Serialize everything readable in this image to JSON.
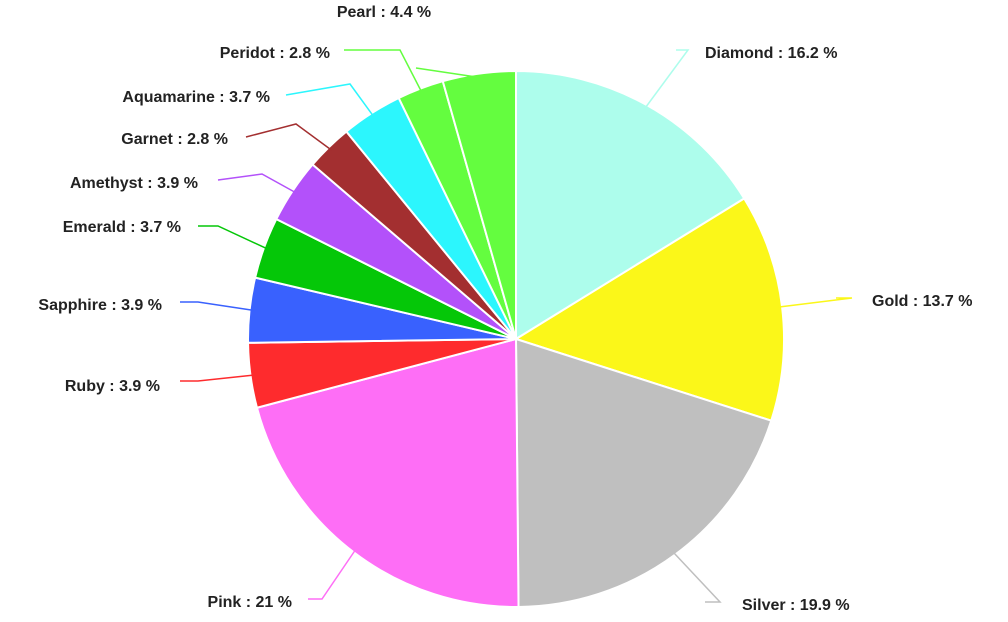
{
  "chart_data": {
    "type": "pie",
    "title": "",
    "start_angle_deg": 90,
    "direction": "clockwise",
    "legend": "none",
    "label_format": "{name} : {value} %",
    "slices": [
      {
        "name": "Diamond",
        "value": 16.2,
        "color": "#adfdec",
        "label": "Diamond : 16.2 %"
      },
      {
        "name": "Gold",
        "value": 13.7,
        "color": "#fbf719",
        "label": "Gold : 13.7 %"
      },
      {
        "name": "Silver",
        "value": 19.9,
        "color": "#bfbfbf",
        "label": "Silver : 19.9 %"
      },
      {
        "name": "Pink",
        "value": 21,
        "color": "#fe6ef6",
        "label": "Pink : 21 %"
      },
      {
        "name": "Ruby",
        "value": 3.9,
        "color": "#fe2b2d",
        "label": "Ruby : 3.9 %"
      },
      {
        "name": "Sapphire",
        "value": 3.9,
        "color": "#3961fe",
        "label": "Sapphire : 3.9 %"
      },
      {
        "name": "Emerald",
        "value": 3.7,
        "color": "#05c708",
        "label": "Emerald : 3.7 %"
      },
      {
        "name": "Amethyst",
        "value": 3.9,
        "color": "#b351fa",
        "label": "Amethyst : 3.9 %"
      },
      {
        "name": "Garnet",
        "value": 2.8,
        "color": "#a32f30",
        "label": "Garnet : 2.8 %"
      },
      {
        "name": "Aquamarine",
        "value": 3.7,
        "color": "#2cf6fd",
        "label": "Aquamarine : 3.7 %"
      },
      {
        "name": "Peridot",
        "value": 2.8,
        "color": "#64fd3f",
        "label": "Peridot : 2.8 %"
      },
      {
        "name": "Pearl",
        "value": 4.4,
        "color": "#64fd3f",
        "label": "Pearl : 4.4 %"
      }
    ]
  }
}
